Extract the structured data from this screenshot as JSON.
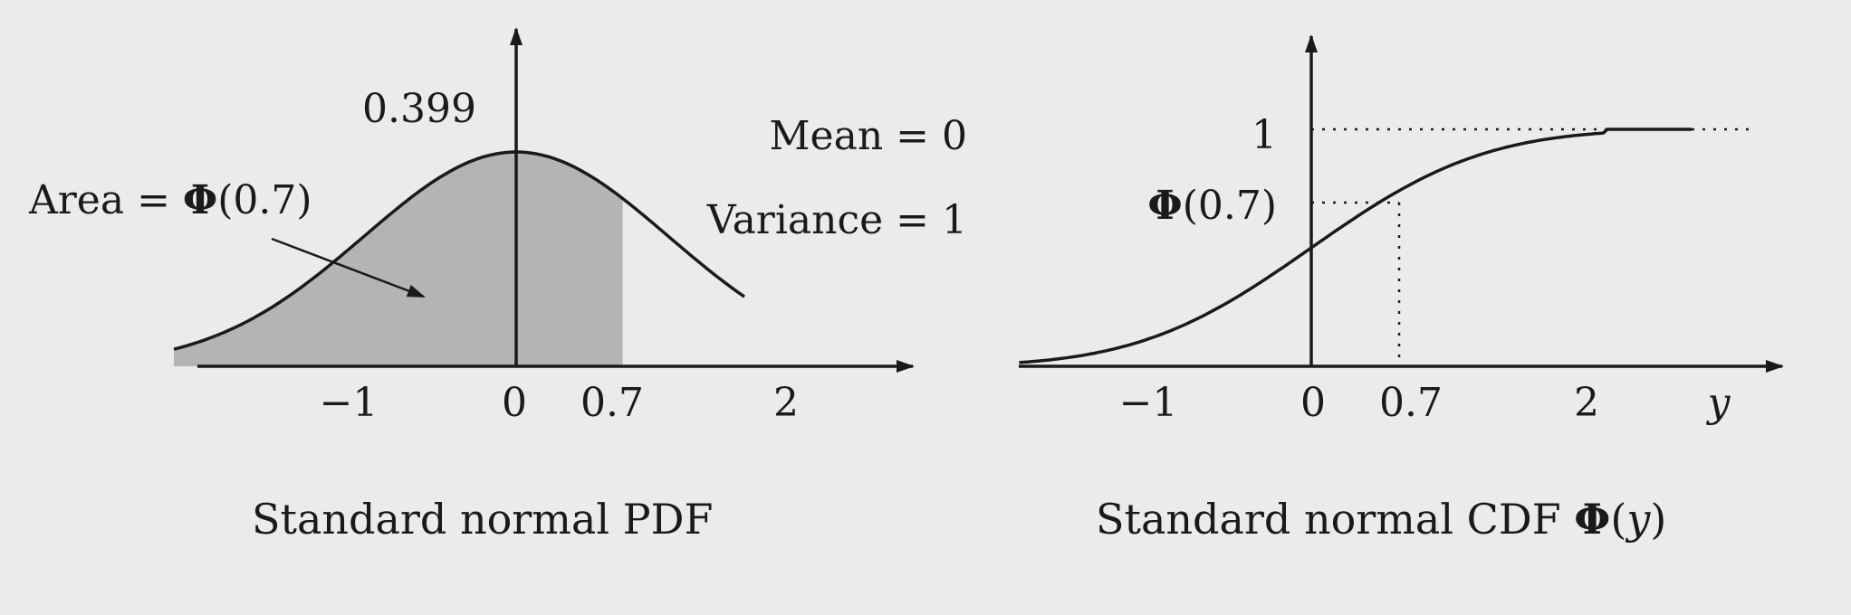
{
  "pdf_panel": {
    "peak_label": "0.399",
    "area_label_prefix": "Area = ",
    "area_label_phi": "Φ",
    "area_label_arg": "(0.7)",
    "mean_label": "Mean = 0",
    "variance_label": "Variance = 1",
    "ticks": [
      "−1",
      "0",
      "0.7",
      "2"
    ],
    "caption": "Standard normal PDF",
    "shade_upper_x": 0.7
  },
  "cdf_panel": {
    "top_label": "1",
    "phi_label_phi": "Φ",
    "phi_label_arg": "(0.7)",
    "ticks": [
      "−1",
      "0",
      "0.7",
      "2"
    ],
    "axis_variable": "y",
    "caption_text": "Standard normal CDF ",
    "caption_phi": "Φ",
    "caption_open": "(",
    "caption_var": "y",
    "caption_close": ")",
    "marked_x": 0.7,
    "marked_value": 0.758
  },
  "chart_data": [
    {
      "type": "line",
      "title": "Standard normal PDF",
      "function": "standard normal probability density",
      "mean": 0,
      "variance": 1,
      "x_ticks": [
        -1,
        0,
        0.7,
        2
      ],
      "peak_value": 0.399,
      "shaded_region": {
        "from": "-inf",
        "to": 0.7,
        "area": "Φ(0.7)"
      },
      "points": [
        {
          "x": -3.0,
          "y": 0.004
        },
        {
          "x": -2.5,
          "y": 0.018
        },
        {
          "x": -2.0,
          "y": 0.054
        },
        {
          "x": -1.5,
          "y": 0.13
        },
        {
          "x": -1.0,
          "y": 0.242
        },
        {
          "x": -0.5,
          "y": 0.352
        },
        {
          "x": 0.0,
          "y": 0.399
        },
        {
          "x": 0.5,
          "y": 0.352
        },
        {
          "x": 0.7,
          "y": 0.312
        },
        {
          "x": 1.0,
          "y": 0.242
        },
        {
          "x": 1.5,
          "y": 0.13
        },
        {
          "x": 2.0,
          "y": 0.054
        },
        {
          "x": 2.5,
          "y": 0.018
        },
        {
          "x": 3.0,
          "y": 0.004
        }
      ]
    },
    {
      "type": "line",
      "title": "Standard normal CDF Φ(y)",
      "xlabel": "y",
      "x_ticks": [
        -1,
        0,
        0.7,
        2
      ],
      "y_marks": [
        {
          "label": "1",
          "value": 1.0
        },
        {
          "label": "Φ(0.7)",
          "value": 0.758
        }
      ],
      "points": [
        {
          "x": -3.0,
          "y": 0.001
        },
        {
          "x": -2.5,
          "y": 0.006
        },
        {
          "x": -2.0,
          "y": 0.023
        },
        {
          "x": -1.5,
          "y": 0.067
        },
        {
          "x": -1.0,
          "y": 0.159
        },
        {
          "x": -0.5,
          "y": 0.309
        },
        {
          "x": 0.0,
          "y": 0.5
        },
        {
          "x": 0.5,
          "y": 0.691
        },
        {
          "x": 0.7,
          "y": 0.758
        },
        {
          "x": 1.0,
          "y": 0.841
        },
        {
          "x": 1.5,
          "y": 0.933
        },
        {
          "x": 2.0,
          "y": 0.977
        },
        {
          "x": 2.5,
          "y": 0.994
        },
        {
          "x": 3.0,
          "y": 0.999
        }
      ]
    }
  ]
}
